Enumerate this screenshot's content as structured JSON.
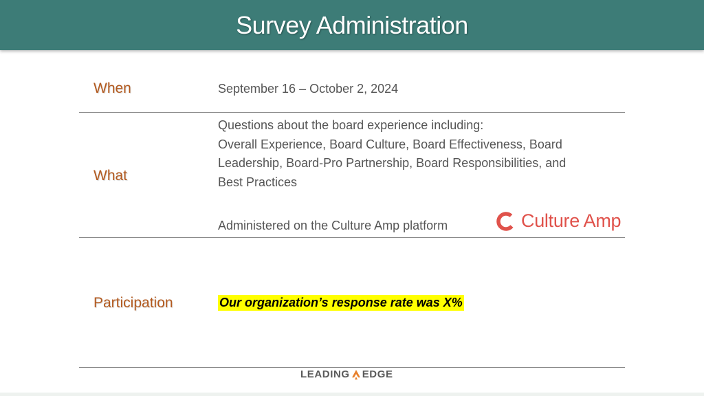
{
  "header": {
    "title": "Survey Administration"
  },
  "rows": {
    "when": {
      "label": "When",
      "text": "September 16 – October 2, 2024"
    },
    "what": {
      "label": "What",
      "line1": "Questions about the board experience including:",
      "line2": "Overall Experience, Board Culture, Board Effectiveness, Board",
      "line3": "Leadership, Board-Pro Partnership, Board Responsibilities, and",
      "line4": "Best Practices",
      "platform": "Administered on the Culture Amp platform",
      "platform_logo": "Culture Amp"
    },
    "participation": {
      "label": "Participation",
      "text": "Our organization’s response rate was X%"
    }
  },
  "footer": {
    "logo_left": "LEADING",
    "logo_right": "EDGE"
  },
  "colors": {
    "header_bg": "#3d7c77",
    "label": "#b35a1f",
    "highlight": "#ffff00",
    "culture_amp": "#e0524b",
    "flame": "#e8812d"
  }
}
